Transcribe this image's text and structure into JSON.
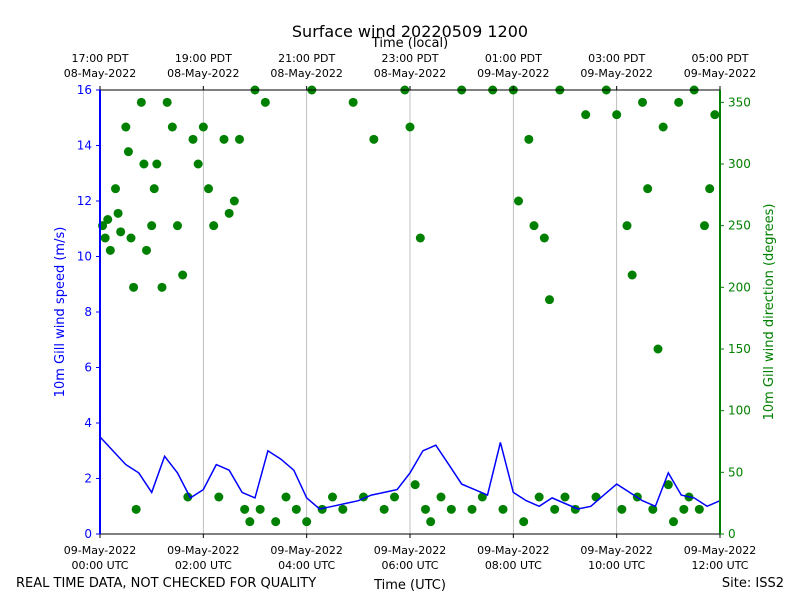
{
  "chart_data": {
    "type": "line+scatter",
    "title": "Surface wind 20220509 1200",
    "top_axis_label": "Time (local)",
    "xlabel": "Time (UTC)",
    "ylabel_left": "10m Gill wind speed (m/s)",
    "ylabel_right": "10m Gill wind direction (degrees)",
    "xlim_hours_utc": [
      0,
      12
    ],
    "ylim_left": [
      0,
      16
    ],
    "ylim_right": [
      0,
      360
    ],
    "grid": "vertical",
    "colors": {
      "speed": "#0000ff",
      "direction": "#008000",
      "grid": "#b0b0b0"
    },
    "bottom_ticks": [
      {
        "h": 0,
        "line1": "09-May-2022",
        "line2": "00:00 UTC"
      },
      {
        "h": 2,
        "line1": "09-May-2022",
        "line2": "02:00 UTC"
      },
      {
        "h": 4,
        "line1": "09-May-2022",
        "line2": "04:00 UTC"
      },
      {
        "h": 6,
        "line1": "09-May-2022",
        "line2": "06:00 UTC"
      },
      {
        "h": 8,
        "line1": "09-May-2022",
        "line2": "08:00 UTC"
      },
      {
        "h": 10,
        "line1": "09-May-2022",
        "line2": "10:00 UTC"
      },
      {
        "h": 12,
        "line1": "09-May-2022",
        "line2": "12:00 UTC"
      }
    ],
    "top_ticks": [
      {
        "h": 0,
        "line1": "17:00 PDT",
        "line2": "08-May-2022"
      },
      {
        "h": 2,
        "line1": "19:00 PDT",
        "line2": "08-May-2022"
      },
      {
        "h": 4,
        "line1": "21:00 PDT",
        "line2": "08-May-2022"
      },
      {
        "h": 6,
        "line1": "23:00 PDT",
        "line2": "08-May-2022"
      },
      {
        "h": 8,
        "line1": "01:00 PDT",
        "line2": "09-May-2022"
      },
      {
        "h": 10,
        "line1": "03:00 PDT",
        "line2": "09-May-2022"
      },
      {
        "h": 12,
        "line1": "05:00 PDT",
        "line2": "09-May-2022"
      }
    ],
    "left_ticks": [
      0,
      2,
      4,
      6,
      8,
      10,
      12,
      14,
      16
    ],
    "right_ticks": [
      0,
      50,
      100,
      150,
      200,
      250,
      300,
      350
    ],
    "series": [
      {
        "name": "wind speed (m/s)",
        "style": "line",
        "x": [
          0,
          0.25,
          0.5,
          0.75,
          1,
          1.25,
          1.5,
          1.75,
          2,
          2.25,
          2.5,
          2.75,
          3,
          3.25,
          3.5,
          3.75,
          4,
          4.25,
          4.5,
          4.75,
          5,
          5.25,
          5.5,
          5.75,
          6,
          6.25,
          6.5,
          6.75,
          7,
          7.25,
          7.5,
          7.75,
          8,
          8.25,
          8.5,
          8.75,
          9,
          9.25,
          9.5,
          9.75,
          10,
          10.25,
          10.5,
          10.75,
          11,
          11.25,
          11.5,
          11.75,
          12
        ],
        "y": [
          3.5,
          3.0,
          2.5,
          2.2,
          1.5,
          2.8,
          2.2,
          1.3,
          1.6,
          2.5,
          2.3,
          1.5,
          1.3,
          3.0,
          2.7,
          2.3,
          1.3,
          0.9,
          1.0,
          1.1,
          1.2,
          1.4,
          1.5,
          1.6,
          2.2,
          3.0,
          3.2,
          2.5,
          1.8,
          1.6,
          1.4,
          3.3,
          1.5,
          1.2,
          1.0,
          1.3,
          1.1,
          0.9,
          1.0,
          1.4,
          1.8,
          1.5,
          1.2,
          1.0,
          2.2,
          1.4,
          1.3,
          1.0,
          1.2
        ]
      },
      {
        "name": "wind direction (degrees)",
        "style": "markers",
        "x": [
          0.05,
          0.1,
          0.15,
          0.2,
          0.3,
          0.35,
          0.4,
          0.5,
          0.55,
          0.6,
          0.65,
          0.7,
          0.8,
          0.85,
          0.9,
          1.0,
          1.05,
          1.1,
          1.2,
          1.3,
          1.4,
          1.5,
          1.6,
          1.7,
          1.8,
          1.9,
          2.0,
          2.1,
          2.2,
          2.3,
          2.4,
          2.5,
          2.6,
          2.7,
          2.8,
          2.9,
          3.0,
          3.1,
          3.2,
          3.4,
          3.6,
          3.8,
          4.0,
          4.1,
          4.3,
          4.5,
          4.7,
          4.9,
          5.1,
          5.3,
          5.5,
          5.7,
          5.9,
          6.0,
          6.1,
          6.2,
          6.3,
          6.4,
          6.6,
          6.8,
          7.0,
          7.2,
          7.4,
          7.6,
          7.8,
          8.0,
          8.1,
          8.2,
          8.3,
          8.4,
          8.5,
          8.6,
          8.7,
          8.8,
          8.9,
          9.0,
          9.2,
          9.4,
          9.6,
          9.8,
          10.0,
          10.1,
          10.2,
          10.3,
          10.4,
          10.5,
          10.6,
          10.7,
          10.8,
          10.9,
          11.0,
          11.1,
          11.2,
          11.3,
          11.4,
          11.5,
          11.6,
          11.7,
          11.8,
          11.9
        ],
        "y": [
          250,
          240,
          255,
          230,
          280,
          260,
          245,
          330,
          310,
          240,
          200,
          20,
          350,
          300,
          230,
          250,
          280,
          300,
          200,
          350,
          330,
          250,
          210,
          30,
          320,
          300,
          330,
          280,
          250,
          30,
          320,
          260,
          270,
          320,
          20,
          10,
          360,
          20,
          350,
          10,
          30,
          20,
          10,
          360,
          20,
          30,
          20,
          350,
          30,
          320,
          20,
          30,
          360,
          330,
          40,
          240,
          20,
          10,
          30,
          20,
          360,
          20,
          30,
          360,
          20,
          360,
          270,
          10,
          320,
          250,
          30,
          240,
          190,
          20,
          360,
          30,
          20,
          340,
          30,
          360,
          340,
          20,
          250,
          210,
          30,
          350,
          280,
          20,
          150,
          330,
          40,
          10,
          350,
          20,
          30,
          360,
          20,
          250,
          280,
          340
        ]
      }
    ]
  },
  "footer": {
    "left": "REAL TIME DATA, NOT CHECKED FOR QUALITY",
    "right": "Site: ISS2"
  }
}
